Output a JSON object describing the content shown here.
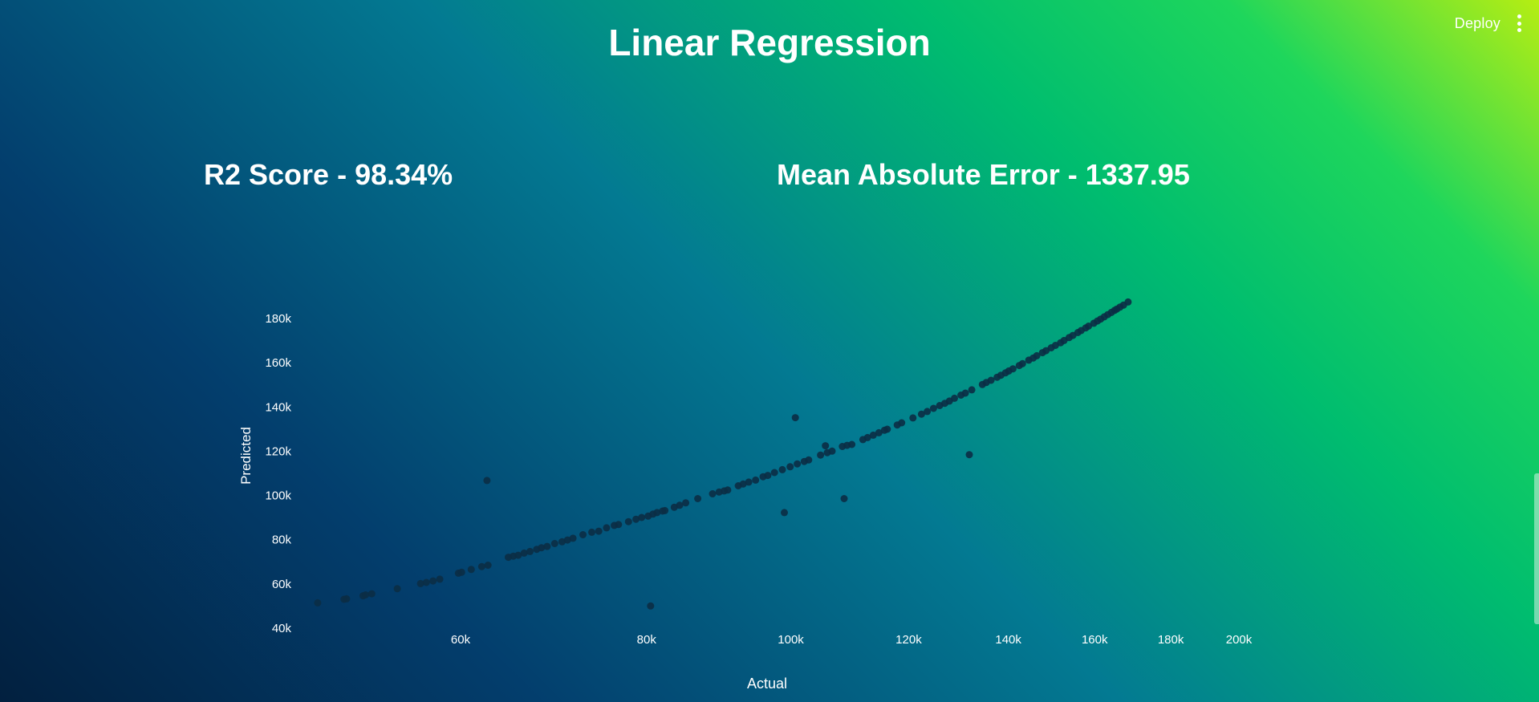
{
  "header": {
    "deploy_label": "Deploy",
    "menu_icon": "kebab-menu-icon"
  },
  "page": {
    "title": "Linear Regression"
  },
  "metrics": {
    "r2_text": "R2 Score - 98.34%",
    "mae_text": "Mean Absolute Error - 1337.95"
  },
  "chart_data": {
    "type": "scatter",
    "title": "",
    "xlabel": "Actual",
    "ylabel": "Predicted",
    "x_scale": "log",
    "x_ticks": [
      60000,
      80000,
      100000,
      120000,
      140000,
      160000,
      180000,
      200000
    ],
    "x_tick_labels": [
      "60k",
      "80k",
      "100k",
      "120k",
      "140k",
      "160k",
      "180k",
      "200k"
    ],
    "y_ticks": [
      40000,
      60000,
      80000,
      100000,
      120000,
      140000,
      160000,
      180000
    ],
    "y_tick_labels": [
      "40k",
      "60k",
      "80k",
      "100k",
      "120k",
      "140k",
      "160k",
      "180k"
    ],
    "xlim": [
      45000,
      200000
    ],
    "ylim": [
      40000,
      180000
    ],
    "grid": false,
    "marker_color": "#0b2e45",
    "points": [
      [
        48100,
        51100
      ],
      [
        50100,
        52700
      ],
      [
        50300,
        52900
      ],
      [
        51600,
        54300
      ],
      [
        51800,
        54700
      ],
      [
        52300,
        55200
      ],
      [
        54400,
        57500
      ],
      [
        56400,
        59800
      ],
      [
        56900,
        60300
      ],
      [
        57500,
        61000
      ],
      [
        58100,
        61800
      ],
      [
        59800,
        64500
      ],
      [
        60100,
        64900
      ],
      [
        61000,
        66200
      ],
      [
        62000,
        67500
      ],
      [
        62600,
        68100
      ],
      [
        64600,
        71700
      ],
      [
        65100,
        72200
      ],
      [
        65600,
        72600
      ],
      [
        66200,
        73600
      ],
      [
        66800,
        74300
      ],
      [
        67500,
        75300
      ],
      [
        68000,
        76000
      ],
      [
        68600,
        76600
      ],
      [
        69400,
        77900
      ],
      [
        70200,
        78700
      ],
      [
        70800,
        79500
      ],
      [
        71400,
        80300
      ],
      [
        72500,
        81900
      ],
      [
        73500,
        83000
      ],
      [
        74300,
        83500
      ],
      [
        75200,
        85000
      ],
      [
        76100,
        86100
      ],
      [
        76600,
        86500
      ],
      [
        77800,
        87800
      ],
      [
        78700,
        88900
      ],
      [
        79400,
        89700
      ],
      [
        80200,
        90300
      ],
      [
        80800,
        91200
      ],
      [
        81300,
        91900
      ],
      [
        82000,
        92600
      ],
      [
        82300,
        92800
      ],
      [
        83500,
        94300
      ],
      [
        84200,
        95200
      ],
      [
        85000,
        96300
      ],
      [
        86600,
        98200
      ],
      [
        88600,
        100400
      ],
      [
        89500,
        101200
      ],
      [
        90200,
        101700
      ],
      [
        90700,
        102100
      ],
      [
        92200,
        104000
      ],
      [
        92900,
        104800
      ],
      [
        93700,
        105700
      ],
      [
        94700,
        106600
      ],
      [
        95800,
        108100
      ],
      [
        96500,
        108700
      ],
      [
        97500,
        110000
      ],
      [
        98700,
        111300
      ],
      [
        99900,
        112600
      ],
      [
        101000,
        113900
      ],
      [
        102100,
        115000
      ],
      [
        102800,
        115700
      ],
      [
        104700,
        117900
      ],
      [
        105800,
        119000
      ],
      [
        106600,
        119700
      ],
      [
        108300,
        121800
      ],
      [
        109100,
        122300
      ],
      [
        109900,
        122700
      ],
      [
        111800,
        124900
      ],
      [
        112600,
        125800
      ],
      [
        113600,
        126900
      ],
      [
        114600,
        128000
      ],
      [
        115600,
        129100
      ],
      [
        116100,
        129600
      ],
      [
        117900,
        131500
      ],
      [
        118700,
        132500
      ],
      [
        120800,
        134700
      ],
      [
        122400,
        136400
      ],
      [
        123500,
        137600
      ],
      [
        124700,
        139000
      ],
      [
        125900,
        140300
      ],
      [
        126900,
        141300
      ],
      [
        127800,
        142300
      ],
      [
        128800,
        143600
      ],
      [
        130100,
        145000
      ],
      [
        131000,
        145900
      ],
      [
        132300,
        147400
      ],
      [
        134500,
        149800
      ],
      [
        135300,
        150700
      ],
      [
        136300,
        151700
      ],
      [
        137600,
        153100
      ],
      [
        138400,
        154000
      ],
      [
        139400,
        155100
      ],
      [
        140100,
        155900
      ],
      [
        141000,
        156900
      ],
      [
        142400,
        158400
      ],
      [
        143100,
        159200
      ],
      [
        144500,
        160800
      ],
      [
        145500,
        161800
      ],
      [
        146300,
        162800
      ],
      [
        147600,
        164200
      ],
      [
        148400,
        165100
      ],
      [
        149600,
        166400
      ],
      [
        150600,
        167500
      ],
      [
        151800,
        168700
      ],
      [
        152600,
        169700
      ],
      [
        153800,
        171000
      ],
      [
        154700,
        172000
      ],
      [
        155900,
        173300
      ],
      [
        156700,
        174200
      ],
      [
        157800,
        175400
      ],
      [
        158500,
        176200
      ],
      [
        159800,
        177500
      ],
      [
        160700,
        178500
      ],
      [
        161500,
        179400
      ],
      [
        162400,
        180400
      ],
      [
        163300,
        181400
      ],
      [
        164200,
        182400
      ],
      [
        165000,
        183300
      ],
      [
        165600,
        183900
      ],
      [
        166400,
        184800
      ],
      [
        167300,
        185700
      ],
      [
        168500,
        187100
      ],
      [
        62500,
        106400
      ],
      [
        80500,
        49700
      ],
      [
        99000,
        91900
      ],
      [
        100700,
        134800
      ],
      [
        108600,
        98200
      ],
      [
        131800,
        118100
      ],
      [
        105500,
        122100
      ]
    ]
  }
}
